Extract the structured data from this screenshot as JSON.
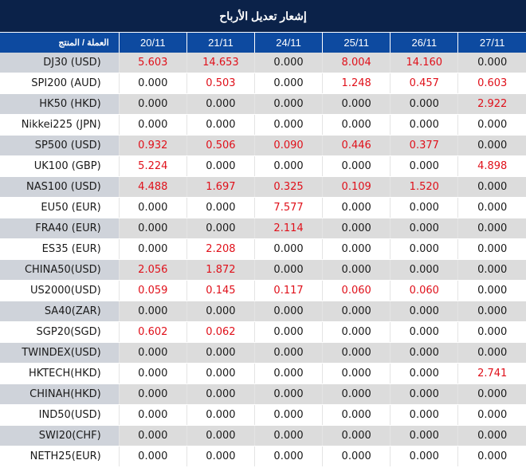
{
  "title": "إشعار تعديل الأرباح",
  "table": {
    "product_header": "العملة / المنتج",
    "dates": [
      "20/11",
      "21/11",
      "24/11",
      "25/11",
      "26/11",
      "27/11"
    ],
    "highlight_color": "#e0101a",
    "rows": [
      {
        "product": "DJ30 (USD)",
        "values": [
          "5.603",
          "14.653",
          "0.000",
          "8.004",
          "14.160",
          "0.000"
        ]
      },
      {
        "product": "SPI200 (AUD)",
        "values": [
          "0.000",
          "0.503",
          "0.000",
          "1.248",
          "0.457",
          "0.603"
        ]
      },
      {
        "product": "HK50 (HKD)",
        "values": [
          "0.000",
          "0.000",
          "0.000",
          "0.000",
          "0.000",
          "2.922"
        ]
      },
      {
        "product": "Nikkei225 (JPN)",
        "values": [
          "0.000",
          "0.000",
          "0.000",
          "0.000",
          "0.000",
          "0.000"
        ]
      },
      {
        "product": "SP500 (USD)",
        "values": [
          "0.932",
          "0.506",
          "0.090",
          "0.446",
          "0.377",
          "0.000"
        ]
      },
      {
        "product": "UK100 (GBP)",
        "values": [
          "5.224",
          "0.000",
          "0.000",
          "0.000",
          "0.000",
          "4.898"
        ]
      },
      {
        "product": "NAS100 (USD)",
        "values": [
          "4.488",
          "1.697",
          "0.325",
          "0.109",
          "1.520",
          "0.000"
        ]
      },
      {
        "product": "EU50 (EUR)",
        "values": [
          "0.000",
          "0.000",
          "7.577",
          "0.000",
          "0.000",
          "0.000"
        ]
      },
      {
        "product": "FRA40 (EUR)",
        "values": [
          "0.000",
          "0.000",
          "2.114",
          "0.000",
          "0.000",
          "0.000"
        ]
      },
      {
        "product": "ES35 (EUR)",
        "values": [
          "0.000",
          "2.208",
          "0.000",
          "0.000",
          "0.000",
          "0.000"
        ]
      },
      {
        "product": "CHINA50(USD)",
        "values": [
          "2.056",
          "1.872",
          "0.000",
          "0.000",
          "0.000",
          "0.000"
        ]
      },
      {
        "product": "US2000(USD)",
        "values": [
          "0.059",
          "0.145",
          "0.117",
          "0.060",
          "0.060",
          "0.000"
        ]
      },
      {
        "product": "SA40(ZAR)",
        "values": [
          "0.000",
          "0.000",
          "0.000",
          "0.000",
          "0.000",
          "0.000"
        ]
      },
      {
        "product": "SGP20(SGD)",
        "values": [
          "0.602",
          "0.062",
          "0.000",
          "0.000",
          "0.000",
          "0.000"
        ]
      },
      {
        "product": "TWINDEX(USD)",
        "values": [
          "0.000",
          "0.000",
          "0.000",
          "0.000",
          "0.000",
          "0.000"
        ]
      },
      {
        "product": "HKTECH(HKD)",
        "values": [
          "0.000",
          "0.000",
          "0.000",
          "0.000",
          "0.000",
          "2.741"
        ]
      },
      {
        "product": "CHINAH(HKD)",
        "values": [
          "0.000",
          "0.000",
          "0.000",
          "0.000",
          "0.000",
          "0.000"
        ]
      },
      {
        "product": "IND50(USD)",
        "values": [
          "0.000",
          "0.000",
          "0.000",
          "0.000",
          "0.000",
          "0.000"
        ]
      },
      {
        "product": "SWI20(CHF)",
        "values": [
          "0.000",
          "0.000",
          "0.000",
          "0.000",
          "0.000",
          "0.000"
        ]
      },
      {
        "product": "NETH25(EUR)",
        "values": [
          "0.000",
          "0.000",
          "0.000",
          "0.000",
          "0.000",
          "0.000"
        ]
      }
    ]
  }
}
